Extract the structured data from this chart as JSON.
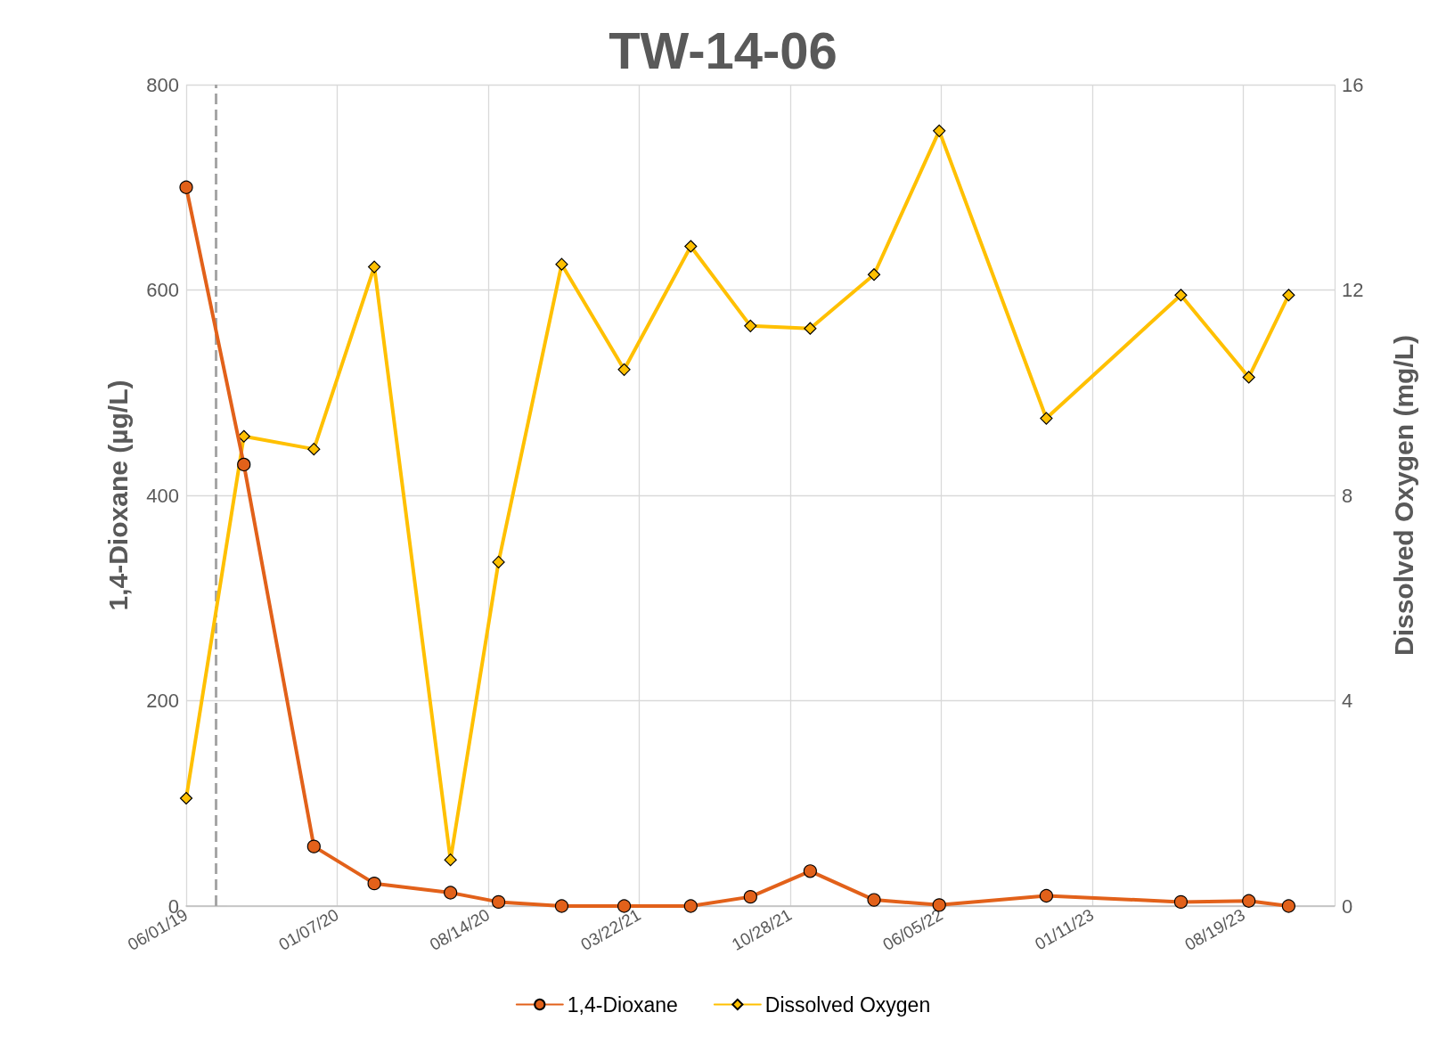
{
  "chart_data": {
    "type": "line",
    "title": "TW-14-06",
    "ylabel": "1,4-Dioxane (µg/L)",
    "y2label": "Dissolved Oxygen (mg/L)",
    "x": [
      "2019-06-01",
      "2019-08-24",
      "2019-12-04",
      "2020-03-01",
      "2020-06-20",
      "2020-08-29",
      "2020-11-29",
      "2021-02-28",
      "2021-06-05",
      "2021-08-31",
      "2021-11-26",
      "2022-02-27",
      "2022-06-02",
      "2022-11-05",
      "2023-05-20",
      "2023-08-27",
      "2023-10-24"
    ],
    "series": [
      {
        "name": "1,4-Dioxane",
        "color": "#e2611a",
        "marker": "circle",
        "values": [
          700,
          430,
          58,
          22,
          13,
          4,
          0,
          0,
          0,
          9,
          34,
          6,
          1,
          10,
          4,
          5,
          0
        ]
      },
      {
        "name": "Dissolved Oxygen",
        "color": "#ffc000",
        "marker": "diamond",
        "axis": "y2",
        "values": [
          2.1,
          9.15,
          8.9,
          12.45,
          0.9,
          6.7,
          12.5,
          10.45,
          12.85,
          11.3,
          11.25,
          12.3,
          15.1,
          9.5,
          11.9,
          10.3,
          11.9
        ]
      }
    ],
    "xlim": [
      "2019-06-01",
      "2023-12-30"
    ],
    "xticks": [
      {
        "value": "2019-06-01",
        "label": "06/01/19"
      },
      {
        "value": "2020-01-07",
        "label": "01/07/20"
      },
      {
        "value": "2020-08-14",
        "label": "08/14/20"
      },
      {
        "value": "2021-03-22",
        "label": "03/22/21"
      },
      {
        "value": "2021-10-28",
        "label": "10/28/21"
      },
      {
        "value": "2022-06-05",
        "label": "06/05/22"
      },
      {
        "value": "2023-01-11",
        "label": "01/11/23"
      },
      {
        "value": "2023-08-19",
        "label": "08/19/23"
      }
    ],
    "ylim": [
      0,
      800
    ],
    "yticks": [
      0,
      200,
      400,
      600,
      800
    ],
    "y2lim": [
      0,
      16
    ],
    "y2ticks": [
      0,
      4,
      8,
      12,
      16
    ],
    "ref_lines": [
      {
        "axis": "x",
        "value": "2019-07-14",
        "color": "#a6a6a6",
        "line_style": "dashed"
      }
    ],
    "grid": true,
    "legend": "bottom",
    "line_style": "solid"
  }
}
